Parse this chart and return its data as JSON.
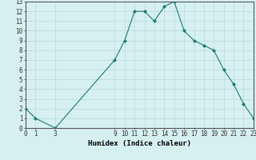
{
  "x": [
    0,
    1,
    3,
    9,
    10,
    11,
    12,
    13,
    14,
    15,
    16,
    17,
    18,
    19,
    20,
    21,
    22,
    23
  ],
  "y": [
    2,
    1,
    0,
    7,
    9,
    12,
    12,
    11,
    12.5,
    13,
    10,
    9,
    8.5,
    8,
    6,
    4.5,
    2.5,
    1
  ],
  "xlabel": "Humidex (Indice chaleur)",
  "xlim": [
    0,
    23
  ],
  "ylim": [
    0,
    13
  ],
  "xticks": [
    0,
    1,
    3,
    9,
    10,
    11,
    12,
    13,
    14,
    15,
    16,
    17,
    18,
    19,
    20,
    21,
    22,
    23
  ],
  "yticks": [
    0,
    1,
    2,
    3,
    4,
    5,
    6,
    7,
    8,
    9,
    10,
    11,
    12,
    13
  ],
  "line_color": "#1a7a6e",
  "bg_color": "#d6f0f0",
  "grid_color": "#b8d8d8",
  "tick_fontsize": 5.5,
  "xlabel_fontsize": 6.5
}
